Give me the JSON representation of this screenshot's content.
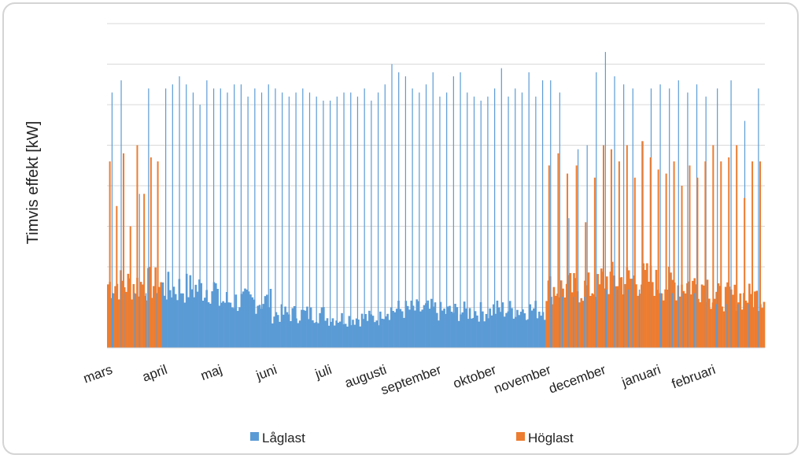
{
  "chart_data": {
    "type": "bar",
    "ylabel": "Timvis effekt [kW]",
    "xlabel": "",
    "title": "",
    "grid": true,
    "legend_position": "bottom",
    "categories": [
      "mars",
      "april",
      "maj",
      "juni",
      "juli",
      "augusti",
      "september",
      "oktober",
      "november",
      "december",
      "januari",
      "februari"
    ],
    "y_gridlines": 8,
    "ylim": [
      0,
      8
    ],
    "series": [
      {
        "name": "Låglast",
        "color": "#5b9bd5",
        "monthly_base": [
          1.5,
          1.4,
          1.1,
          0.8,
          0.7,
          0.9,
          0.85,
          0.9,
          1.0,
          1.7,
          1.6,
          1.2
        ],
        "monthly_peaks": [
          [
            6.3,
            6.6,
            3.0,
            3.8,
            6.4,
            2.1
          ],
          [
            6.4,
            6.5,
            6.7,
            6.5,
            6.3,
            6.0,
            6.6,
            6.4
          ],
          [
            6.4,
            6.3,
            6.5,
            6.5,
            6.2,
            6.4,
            6.3,
            6.5
          ],
          [
            6.4,
            6.3,
            6.2,
            6.3,
            6.4,
            6.3,
            6.2,
            6.1
          ],
          [
            6.1,
            6.2,
            6.3,
            6.3,
            6.2,
            6.4,
            6.1,
            6.3
          ],
          [
            6.5,
            7.0,
            6.8,
            6.7,
            6.4,
            6.3,
            6.5,
            6.8
          ],
          [
            6.2,
            6.3,
            6.7,
            6.8,
            6.3,
            6.2,
            6.1,
            6.2
          ],
          [
            6.4,
            6.9,
            6.2,
            6.4,
            6.3,
            6.8,
            6.2,
            6.6
          ],
          [
            6.6,
            6.3,
            3.2,
            4.9,
            5.0,
            6.8
          ],
          [
            7.3,
            6.7,
            6.5,
            6.4,
            5.1,
            6.4
          ],
          [
            6.5,
            6.4,
            6.6,
            6.3,
            6.5,
            6.2
          ],
          [
            6.4,
            6.6,
            5.6,
            6.4
          ]
        ]
      },
      {
        "name": "Höglast",
        "color": "#ed7d31",
        "months_active": [
          "mars",
          "november",
          "december",
          "januari",
          "februari"
        ],
        "monthly_base": [
          1.5,
          0,
          0,
          0,
          0,
          0,
          0,
          0,
          1.4,
          1.6,
          1.5,
          1.2
        ],
        "monthly_peaks": [
          [
            4.6,
            3.5,
            4.8,
            3.0,
            5.0,
            3.8,
            4.7,
            4.6
          ],
          [],
          [],
          [],
          [],
          [],
          [],
          [],
          [
            4.5,
            4.8,
            4.3,
            4.5,
            3.1,
            4.2
          ],
          [
            5.0,
            4.9,
            4.6,
            5.0,
            4.2,
            5.1,
            4.7
          ],
          [
            4.4,
            4.3,
            4.6,
            4.0,
            4.5,
            4.2,
            4.6
          ],
          [
            5.0,
            4.6,
            4.7,
            5.0,
            3.7,
            4.6,
            4.6
          ]
        ]
      }
    ]
  },
  "legend": {
    "items": [
      {
        "label": "Låglast",
        "color": "#5b9bd5"
      },
      {
        "label": "Höglast",
        "color": "#ed7d31"
      }
    ]
  }
}
